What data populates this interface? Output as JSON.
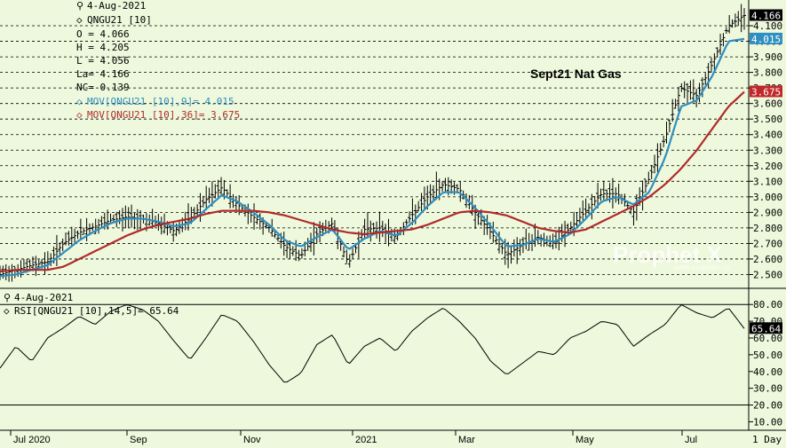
{
  "price_panel": {
    "date": "4-Aug-2021",
    "symbol": "QNGU21 [10]",
    "ohlc_lines": [
      "O = 4.066",
      "H = 4.205",
      "L = 4.056",
      "La= 4.166",
      "NC= 0.139"
    ],
    "mov9_label": "MOV[QNGU21 [10],9]= 4.015",
    "mov36_label": "MOV[QNGU21 [10],36]= 3.675",
    "annotation": "Sept21 Nat Gas",
    "watermark": "Prophet X",
    "watermark_sub": "www.prophetx.co"
  },
  "rsi_panel": {
    "date": "4-Aug-2021",
    "label": "RSI[QNGU21 [10],14,5]= 65.64"
  },
  "footer": {
    "period": "1 Day"
  },
  "colors": {
    "background": "#eef8dc",
    "price_bars": "#000000",
    "mov9": "#2e8fc0",
    "mov36": "#b02a2a",
    "last_price_box": "#000000",
    "mov9_box": "#2e8fc0",
    "mov36_box": "#c0282a"
  },
  "chart_data": [
    {
      "type": "line",
      "description_kind": "price_bars_with_moving_averages",
      "x_labels": [
        "Jul 2020",
        "Sep",
        "Nov",
        "2021",
        "Mar",
        "May",
        "Jul"
      ],
      "y_ticks": [
        "4.100",
        "4.000",
        "3.900",
        "3.800",
        "3.700",
        "3.600",
        "3.500",
        "3.400",
        "3.300",
        "3.200",
        "3.100",
        "3.000",
        "2.900",
        "2.800",
        "2.700",
        "2.600",
        "2.500"
      ],
      "ylim": [
        2.44,
        4.22
      ],
      "last_value": "4.166",
      "series": [
        {
          "name": "QNGU21 [10]",
          "values": [
            2.5,
            2.53,
            2.56,
            2.58,
            2.7,
            2.77,
            2.81,
            2.85,
            2.87,
            2.86,
            2.83,
            2.78,
            2.86,
            2.98,
            3.06,
            2.95,
            2.87,
            2.8,
            2.68,
            2.62,
            2.76,
            2.83,
            2.57,
            2.79,
            2.8,
            2.74,
            2.88,
            3.0,
            3.08,
            3.05,
            2.9,
            2.77,
            2.63,
            2.69,
            2.74,
            2.7,
            2.8,
            2.91,
            3.02,
            3.02,
            2.9,
            3.12,
            3.38,
            3.7,
            3.65,
            3.86,
            4.1,
            4.166
          ]
        },
        {
          "name": "MOV 9",
          "values": [
            2.49,
            2.5,
            2.53,
            2.56,
            2.64,
            2.72,
            2.78,
            2.83,
            2.86,
            2.86,
            2.84,
            2.81,
            2.83,
            2.92,
            3.01,
            2.97,
            2.9,
            2.82,
            2.72,
            2.68,
            2.74,
            2.79,
            2.66,
            2.73,
            2.78,
            2.75,
            2.83,
            2.94,
            3.03,
            3.03,
            2.93,
            2.81,
            2.68,
            2.69,
            2.73,
            2.71,
            2.76,
            2.86,
            2.97,
            3.0,
            2.95,
            3.03,
            3.25,
            3.58,
            3.62,
            3.78,
            4.0,
            4.015
          ]
        },
        {
          "name": "MOV 36",
          "values": [
            2.52,
            2.53,
            2.53,
            2.53,
            2.55,
            2.6,
            2.65,
            2.7,
            2.75,
            2.79,
            2.82,
            2.84,
            2.86,
            2.89,
            2.91,
            2.91,
            2.91,
            2.9,
            2.88,
            2.85,
            2.82,
            2.79,
            2.77,
            2.76,
            2.77,
            2.78,
            2.79,
            2.82,
            2.86,
            2.9,
            2.91,
            2.9,
            2.88,
            2.84,
            2.8,
            2.78,
            2.77,
            2.79,
            2.84,
            2.89,
            2.94,
            3.0,
            3.08,
            3.18,
            3.3,
            3.44,
            3.58,
            3.675
          ]
        }
      ]
    },
    {
      "type": "line",
      "description_kind": "rsi",
      "y_ticks": [
        "80.00",
        "70.00",
        "60.00",
        "50.00",
        "40.00",
        "30.00",
        "20.00",
        "10.00"
      ],
      "ylim": [
        6,
        87
      ],
      "reference_lines": [
        80,
        20
      ],
      "last_value": "65.64",
      "series": [
        {
          "name": "RSI[QNGU21 [10],14,5]",
          "values": [
            42,
            55,
            46,
            60,
            66,
            73,
            68,
            76,
            80,
            77,
            70,
            58,
            47,
            60,
            74,
            70,
            58,
            44,
            33,
            39,
            56,
            62,
            44,
            55,
            60,
            52,
            64,
            72,
            78,
            70,
            60,
            46,
            38,
            45,
            52,
            50,
            60,
            64,
            70,
            68,
            55,
            62,
            68,
            80,
            75,
            72,
            78,
            65.64
          ]
        }
      ]
    }
  ]
}
